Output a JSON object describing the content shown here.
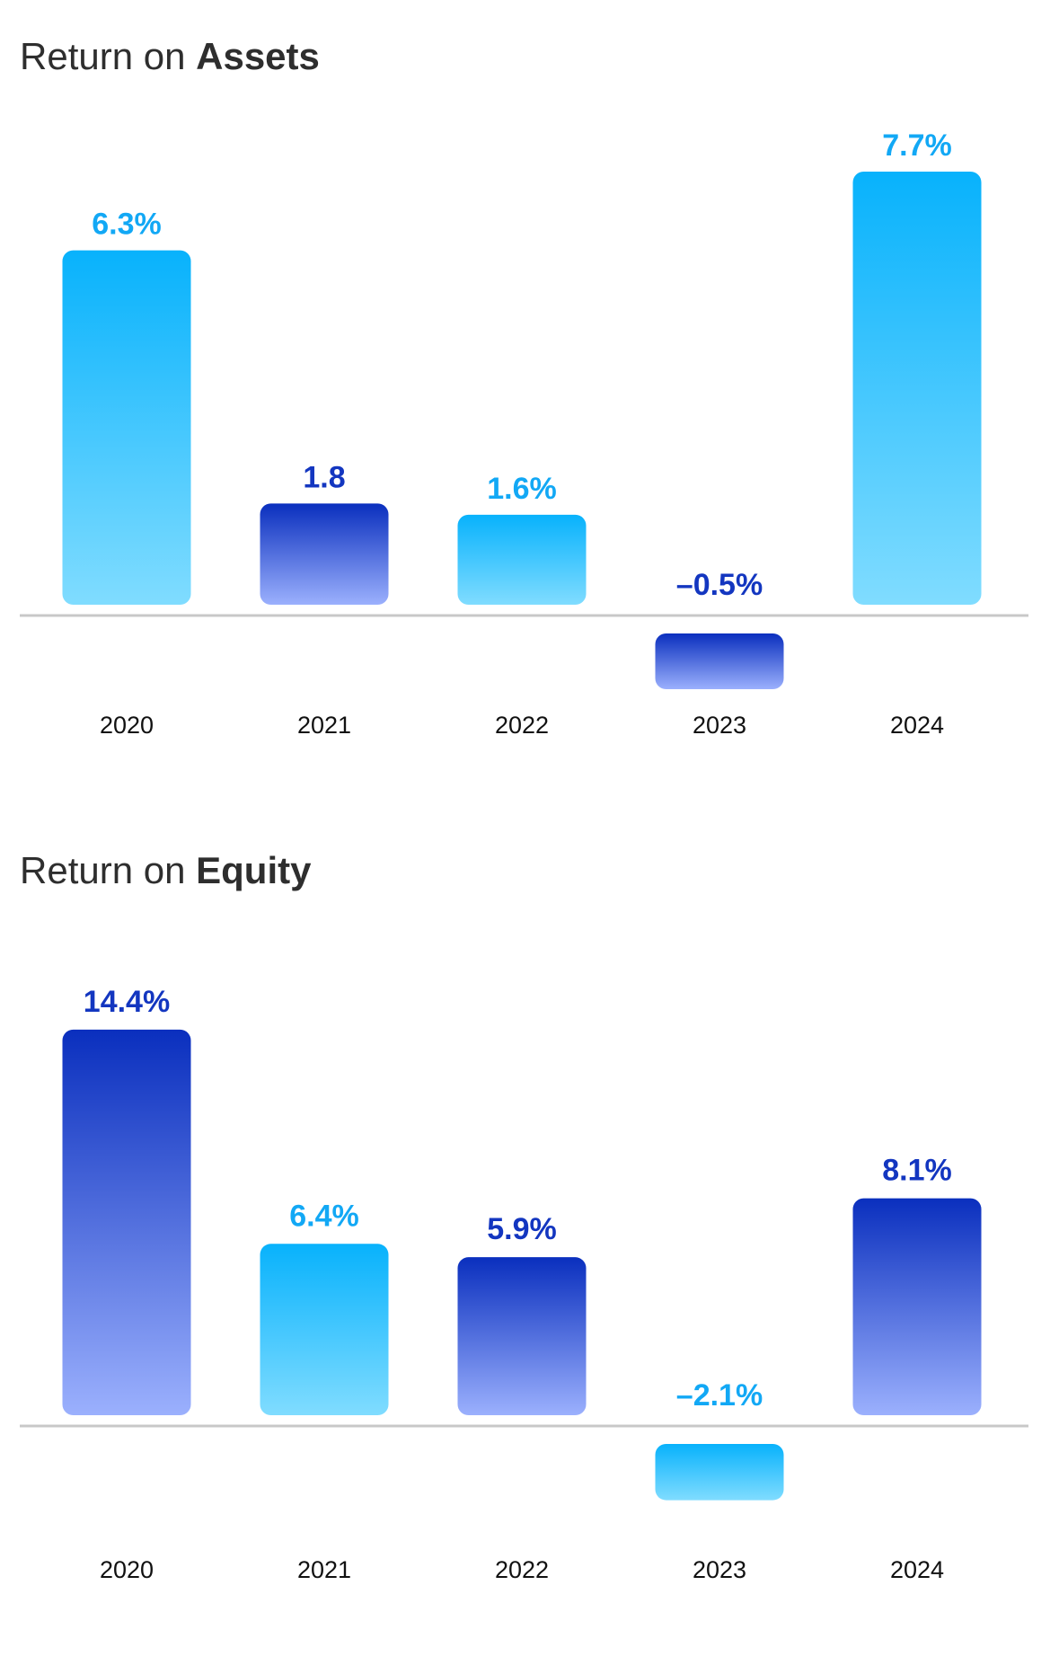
{
  "colors": {
    "cyan_top": "#08b2fc",
    "cyan_bottom": "#80dcff",
    "navy_top": "#0a2fbe",
    "navy_bottom": "#9bb0fd",
    "cyan_label": "#12a8f5",
    "navy_label": "#1336c0",
    "baseline": "#c8c8c8"
  },
  "chart_data": [
    {
      "type": "bar",
      "title_prefix": "Return on ",
      "title_bold": "Assets",
      "categories": [
        "2020",
        "2021",
        "2022",
        "2023",
        "2024"
      ],
      "values": [
        6.3,
        1.8,
        1.6,
        -0.5,
        7.7
      ],
      "value_labels": [
        "6.3%",
        "1.8",
        "1.6%",
        "–0.5%",
        "7.7%"
      ],
      "bar_colors": [
        "cyan",
        "navy",
        "cyan",
        "navy",
        "cyan"
      ],
      "grid": false,
      "legend": "none"
    },
    {
      "type": "bar",
      "title_prefix": "Return on ",
      "title_bold": "Equity",
      "categories": [
        "2020",
        "2021",
        "2022",
        "2023",
        "2024"
      ],
      "values": [
        14.4,
        6.4,
        5.9,
        -2.1,
        8.1
      ],
      "value_labels": [
        "14.4%",
        "6.4%",
        "5.9%",
        "–2.1%",
        "8.1%"
      ],
      "bar_colors": [
        "navy",
        "cyan",
        "navy",
        "cyan",
        "navy"
      ],
      "grid": false,
      "legend": "none"
    }
  ]
}
